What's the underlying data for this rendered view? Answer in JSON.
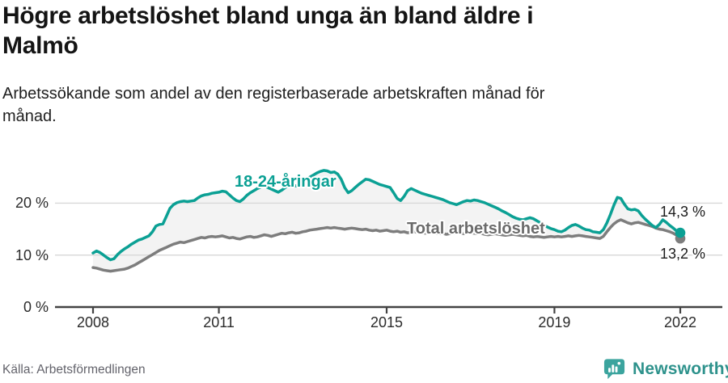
{
  "header": {
    "title_lines": [
      "Högre arbetslöshet bland unga än bland äldre i",
      "Malmö"
    ],
    "subtitle_lines": [
      "Arbetssökande som andel av den registerbaserade arbetskraften månad för",
      "månad."
    ]
  },
  "chart_data": {
    "type": "line",
    "title": "Högre arbetslöshet bland unga än bland äldre i Malmö",
    "subtitle": "Arbetssökande som andel av den registerbaserade arbetskraften månad för månad.",
    "unit": "%",
    "x_start_month": "2008-01",
    "x_end_month": "2022-01",
    "x_ticks": [
      2008,
      2011,
      2015,
      2019,
      2022
    ],
    "y_ticks": [
      {
        "value": 0,
        "label": "0 %"
      },
      {
        "value": 10,
        "label": "10 %"
      },
      {
        "value": 20,
        "label": "20 %"
      }
    ],
    "ylim": [
      0,
      27.5
    ],
    "grid": true,
    "band_fill": "#f3f3f3",
    "grid_color": "#d8d8d8",
    "axis_color": "#434343",
    "series": [
      {
        "name": "18-24-åringar",
        "color": "#0ba094",
        "end_label": "14,3 %",
        "end_value": 14.3,
        "values": [
          10.4,
          10.8,
          10.5,
          10.0,
          9.5,
          9.1,
          9.3,
          10.1,
          10.7,
          11.2,
          11.6,
          12.1,
          12.5,
          12.9,
          13.1,
          13.4,
          13.7,
          14.5,
          15.6,
          15.9,
          16.0,
          17.5,
          19.0,
          19.7,
          20.1,
          20.3,
          20.4,
          20.3,
          20.4,
          20.5,
          21.0,
          21.4,
          21.6,
          21.7,
          21.9,
          22.0,
          22.1,
          22.3,
          22.2,
          21.6,
          21.0,
          20.5,
          20.3,
          20.8,
          21.5,
          22.0,
          22.4,
          22.8,
          23.1,
          23.3,
          23.0,
          22.7,
          22.4,
          22.1,
          22.5,
          23.0,
          23.4,
          23.6,
          23.3,
          23.5,
          24.0,
          24.5,
          25.0,
          25.4,
          25.8,
          26.1,
          26.3,
          26.2,
          25.9,
          26.0,
          25.6,
          24.6,
          23.0,
          22.0,
          22.4,
          23.0,
          23.6,
          24.1,
          24.6,
          24.5,
          24.2,
          23.9,
          23.6,
          23.4,
          23.2,
          23.0,
          22.0,
          20.9,
          20.5,
          21.3,
          22.4,
          22.8,
          22.5,
          22.2,
          21.9,
          21.7,
          21.5,
          21.3,
          21.1,
          20.9,
          20.7,
          20.4,
          20.1,
          19.9,
          19.7,
          20.0,
          20.3,
          20.5,
          20.4,
          20.6,
          20.5,
          20.3,
          20.1,
          19.8,
          19.5,
          19.2,
          18.9,
          18.5,
          18.2,
          17.8,
          17.4,
          17.1,
          16.9,
          16.8,
          17.0,
          17.2,
          17.0,
          16.6,
          16.2,
          15.8,
          15.4,
          15.1,
          14.9,
          14.6,
          14.5,
          14.8,
          15.3,
          15.7,
          15.9,
          15.6,
          15.2,
          14.9,
          14.8,
          14.5,
          14.4,
          14.3,
          14.9,
          16.2,
          17.8,
          19.6,
          21.1,
          20.9,
          19.8,
          18.9,
          18.7,
          18.8,
          18.5,
          17.6,
          16.9,
          16.3,
          15.7,
          15.3,
          15.9,
          16.8,
          16.3,
          15.7,
          15.2,
          14.6,
          14.3
        ]
      },
      {
        "name": "Total arbetslöshet",
        "color": "#7d7d7d",
        "end_label": "13,2 %",
        "end_value": 13.2,
        "values": [
          7.6,
          7.5,
          7.3,
          7.1,
          7.0,
          6.9,
          7.0,
          7.1,
          7.2,
          7.3,
          7.5,
          7.8,
          8.1,
          8.5,
          8.9,
          9.3,
          9.7,
          10.1,
          10.5,
          10.9,
          11.2,
          11.5,
          11.8,
          12.1,
          12.3,
          12.5,
          12.4,
          12.6,
          12.8,
          13.0,
          13.2,
          13.4,
          13.3,
          13.5,
          13.6,
          13.5,
          13.6,
          13.7,
          13.5,
          13.3,
          13.4,
          13.2,
          13.1,
          13.3,
          13.5,
          13.6,
          13.4,
          13.5,
          13.7,
          13.9,
          13.8,
          13.6,
          13.8,
          14.0,
          14.2,
          14.1,
          14.3,
          14.4,
          14.2,
          14.3,
          14.5,
          14.6,
          14.8,
          14.9,
          15.0,
          15.1,
          15.2,
          15.3,
          15.2,
          15.3,
          15.2,
          15.1,
          15.0,
          15.1,
          15.2,
          15.1,
          15.0,
          14.9,
          15.0,
          14.8,
          14.7,
          14.8,
          14.6,
          14.7,
          14.8,
          14.6,
          14.5,
          14.6,
          14.4,
          14.5,
          14.3,
          14.4,
          14.5,
          14.3,
          14.4,
          14.2,
          14.3,
          14.4,
          14.2,
          14.1,
          14.2,
          14.0,
          14.1,
          14.2,
          14.3,
          14.2,
          14.1,
          14.2,
          14.3,
          14.2,
          14.1,
          14.2,
          14.0,
          13.9,
          14.0,
          14.1,
          14.0,
          13.9,
          13.8,
          13.9,
          14.0,
          13.9,
          13.8,
          13.7,
          13.8,
          13.6,
          13.5,
          13.6,
          13.5,
          13.4,
          13.5,
          13.6,
          13.5,
          13.6,
          13.5,
          13.6,
          13.7,
          13.6,
          13.7,
          13.8,
          13.7,
          13.6,
          13.5,
          13.4,
          13.3,
          13.2,
          13.6,
          14.5,
          15.3,
          16.0,
          16.5,
          16.8,
          16.5,
          16.2,
          16.0,
          16.2,
          16.3,
          16.1,
          15.9,
          15.7,
          15.5,
          15.2,
          15.0,
          14.9,
          14.7,
          14.5,
          14.2,
          13.8,
          13.2
        ]
      }
    ]
  },
  "footer": {
    "source": "Källa: Arbetsförmedlingen",
    "brand": "Newsworthy"
  }
}
